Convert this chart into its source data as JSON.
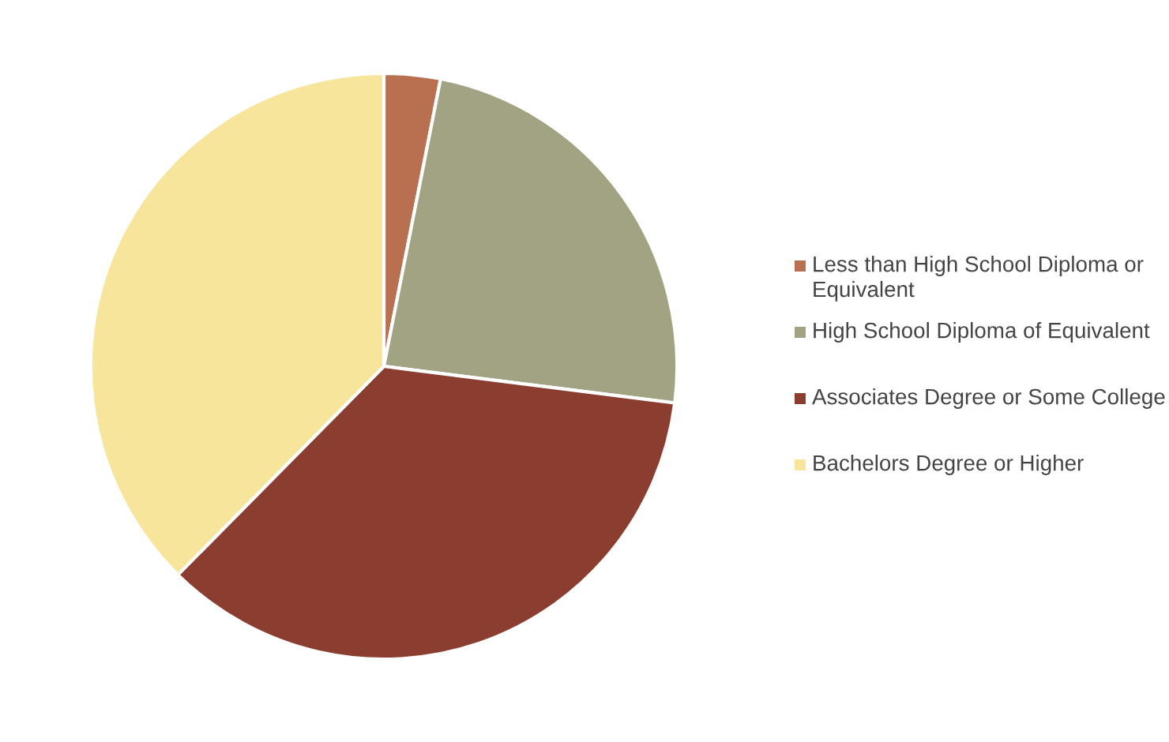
{
  "chart_data": {
    "type": "pie",
    "categories": [
      "Less than High School Diploma or Equivalent",
      "High School Diploma of Equivalent",
      "Associates Degree or Some College",
      "Bachelors Degree or Higher"
    ],
    "values": [
      3.1,
      23.9,
      35.4,
      37.6
    ],
    "colors": [
      "#b87050",
      "#a2a382",
      "#8b3e2f",
      "#f7e59b"
    ],
    "legend": "right"
  }
}
